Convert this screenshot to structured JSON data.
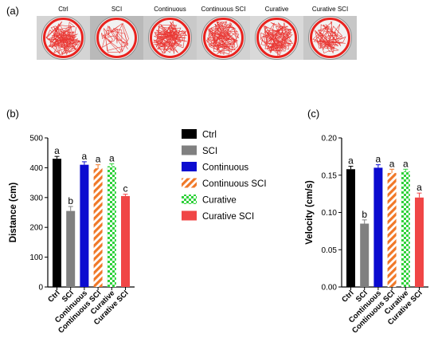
{
  "panel_labels": {
    "a": "(a)",
    "b": "(b)",
    "c": "(c)"
  },
  "track_panel": {
    "labels": [
      "Ctrl",
      "SCI",
      "Continuous",
      "Continuous SCI",
      "Curative",
      "Curative SCI"
    ],
    "track_color": "#e8231f",
    "dish_backgrounds": [
      "#d4d4d4",
      "#b9b9b9",
      "#c9c9c9",
      "#d2d2d2",
      "#d9d9d9",
      "#c7c7c7"
    ]
  },
  "legend": {
    "entries": [
      {
        "label": "Ctrl",
        "color": "#000000",
        "pattern": "solid"
      },
      {
        "label": "SCI",
        "color": "#808080",
        "pattern": "solid"
      },
      {
        "label": "Continuous",
        "color": "#0b0bd0",
        "pattern": "solid"
      },
      {
        "label": "Continuous SCI",
        "color": "#f07828",
        "pattern": "diagonal-stripes"
      },
      {
        "label": "Curative",
        "color": "#2fd13a",
        "pattern": "checkerboard"
      },
      {
        "label": "Curative SCI",
        "color": "#f04646",
        "pattern": "solid"
      }
    ]
  },
  "chart_data": [
    {
      "type": "bar",
      "panel": "(b)",
      "title": "",
      "xlabel": "",
      "ylabel": "Distance (cm)",
      "categories": [
        "Ctrl",
        "SCI",
        "Continuous",
        "Continuous SCI",
        "Curative",
        "Curative SCI"
      ],
      "values": [
        430,
        255,
        410,
        398,
        405,
        305
      ],
      "errors": [
        8,
        15,
        10,
        12,
        8,
        6
      ],
      "significance": [
        "a",
        "b",
        "a",
        "a",
        "a",
        "c"
      ],
      "ylim": [
        0,
        500
      ],
      "yticks": [
        0,
        100,
        200,
        300,
        400,
        500
      ],
      "ytick_labels": [
        "0",
        "100",
        "200",
        "300",
        "400",
        "500"
      ],
      "grid": false
    },
    {
      "type": "bar",
      "panel": "(c)",
      "title": "",
      "xlabel": "",
      "ylabel": "Velocity (cm/s)",
      "categories": [
        "Ctrl",
        "SCI",
        "Continuous",
        "Continuous SCI",
        "Curative",
        "Curative SCI"
      ],
      "values": [
        0.158,
        0.085,
        0.16,
        0.153,
        0.155,
        0.12
      ],
      "errors": [
        0.004,
        0.005,
        0.004,
        0.005,
        0.003,
        0.006
      ],
      "significance": [
        "a",
        "b",
        "a",
        "a",
        "a",
        "a"
      ],
      "ylim": [
        0,
        0.2
      ],
      "yticks": [
        0,
        0.05,
        0.1,
        0.15,
        0.2
      ],
      "ytick_labels": [
        "0.00",
        "0.05",
        "0.10",
        "0.15",
        "0.20"
      ],
      "grid": false
    }
  ]
}
